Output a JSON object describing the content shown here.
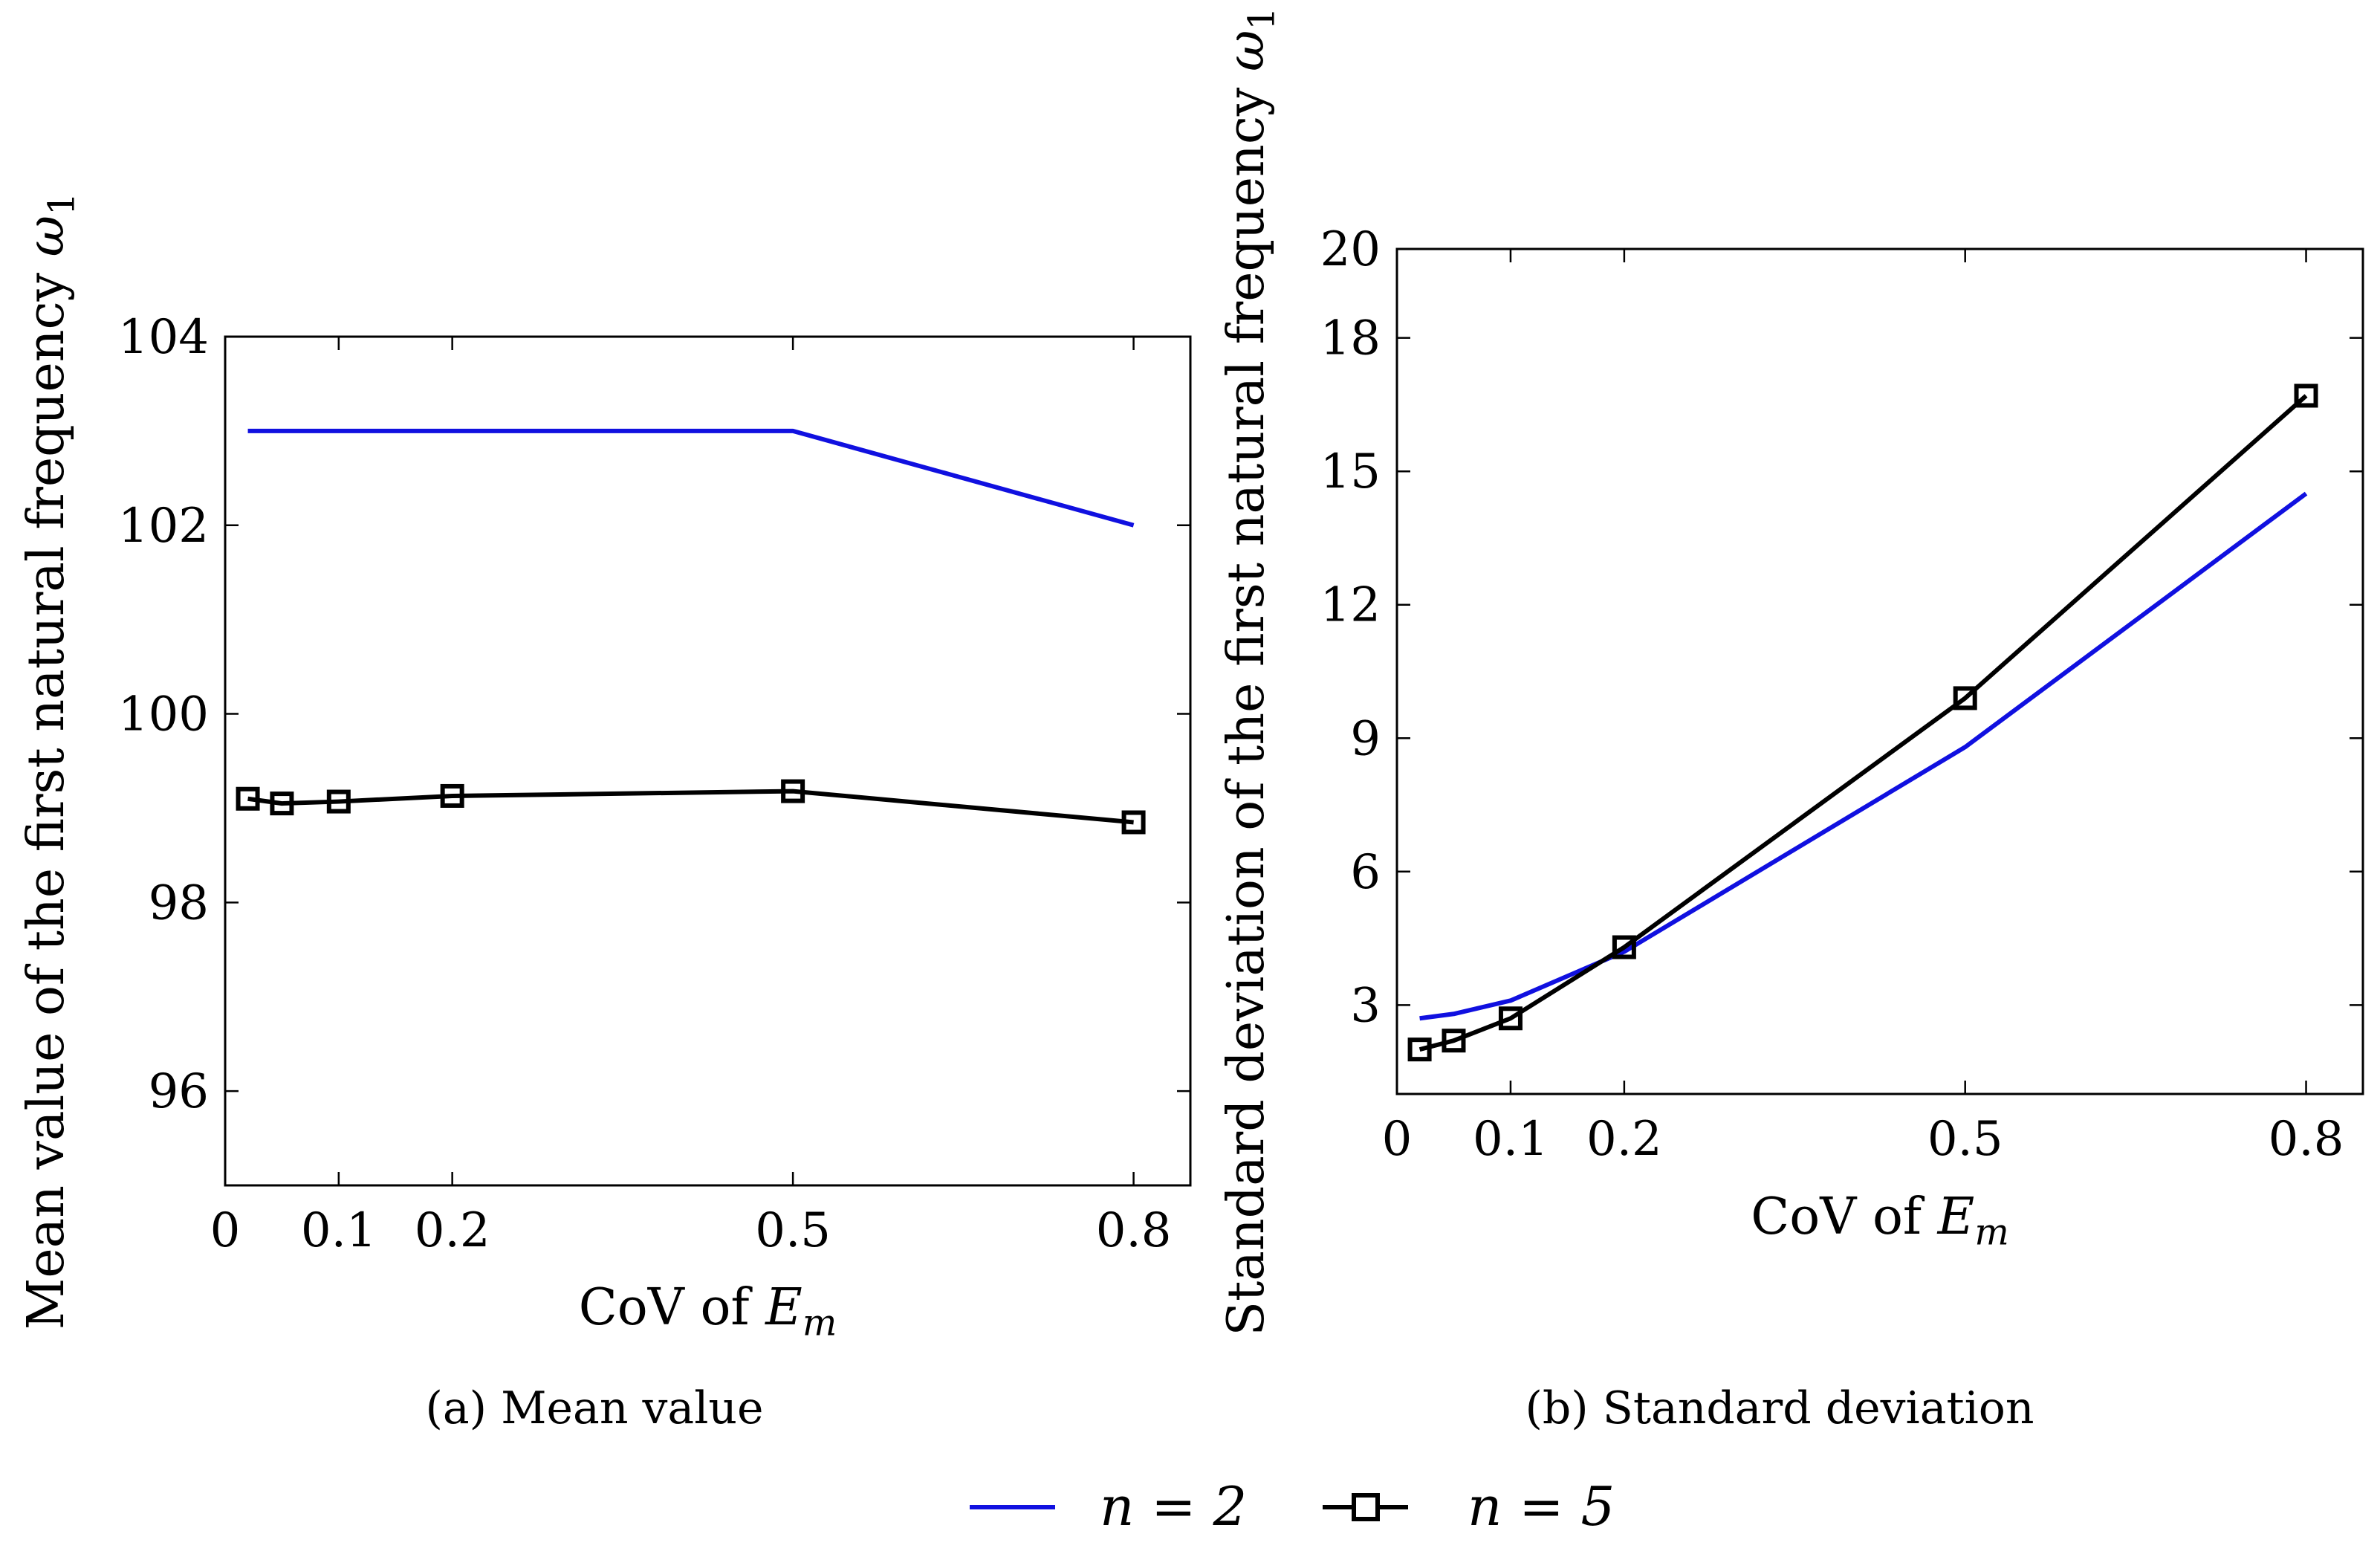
{
  "chart_data": [
    {
      "type": "line",
      "x": [
        0.02,
        0.05,
        0.1,
        0.2,
        0.5,
        0.8
      ],
      "series": [
        {
          "name": "n = 2",
          "color": "#1010e0",
          "marker": "none",
          "values": [
            103,
            103,
            103,
            103,
            103,
            102
          ]
        },
        {
          "name": "n = 5",
          "color": "#000000",
          "marker": "square",
          "values": [
            99.1,
            99.05,
            99.07,
            99.13,
            99.18,
            98.85
          ]
        }
      ],
      "xlim": [
        0,
        0.85
      ],
      "ylim": [
        95,
        104
      ],
      "xticks": [
        0,
        0.1,
        0.2,
        0.5,
        0.8
      ],
      "xtick_labels": [
        "0",
        "0.1",
        "0.2",
        "0.5",
        "0.8"
      ],
      "yticks": [
        96,
        98,
        100,
        102,
        104
      ],
      "ytick_labels": [
        "96",
        "98",
        "100",
        "102",
        "104"
      ],
      "xlabel": {
        "prefix": "CoV of ",
        "var": "E",
        "sub": "m"
      },
      "ylabel": {
        "prefix": "Mean value of the first natural frequency ",
        "var": "ω",
        "sub": "1"
      },
      "caption": "(a) Mean value"
    },
    {
      "type": "line",
      "x": [
        0.02,
        0.05,
        0.1,
        0.2,
        0.5,
        0.8
      ],
      "series": [
        {
          "name": "n = 2",
          "color": "#1010e0",
          "marker": "none",
          "values": [
            2.7,
            2.8,
            3.1,
            4.2,
            8.8,
            14.5
          ]
        },
        {
          "name": "n = 5",
          "color": "#000000",
          "marker": "square",
          "values": [
            2.0,
            2.2,
            2.7,
            4.3,
            9.9,
            16.7
          ]
        }
      ],
      "xlim": [
        0,
        0.85
      ],
      "ylim": [
        1,
        20
      ],
      "xticks": [
        0,
        0.1,
        0.2,
        0.5,
        0.8
      ],
      "xtick_labels": [
        "0",
        "0.1",
        "0.2",
        "0.5",
        "0.8"
      ],
      "yticks": [
        3,
        6,
        9,
        12,
        15,
        18,
        20
      ],
      "ytick_labels": [
        "3",
        "6",
        "9",
        "12",
        "15",
        "18",
        "20"
      ],
      "xlabel": {
        "prefix": "CoV of ",
        "var": "E",
        "sub": "m"
      },
      "ylabel": {
        "prefix": "Standard deviation of the first natural frequency ",
        "var": "ω",
        "sub": "1"
      },
      "caption": "(b) Standard deviation"
    }
  ],
  "legend": [
    {
      "label": "n = 2",
      "color": "#1010e0",
      "marker": "none"
    },
    {
      "label": "n = 5",
      "color": "#000000",
      "marker": "square"
    }
  ]
}
